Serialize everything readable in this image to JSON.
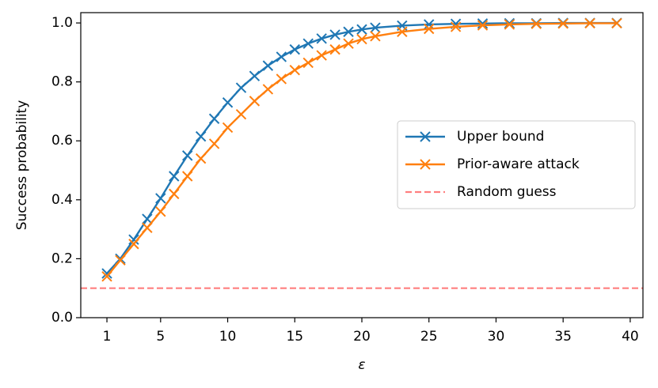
{
  "chart_data": {
    "type": "line",
    "x_label": "ε",
    "y_label": "Success probability",
    "x": [
      1,
      2,
      3,
      4,
      5,
      6,
      7,
      8,
      9,
      10,
      11,
      12,
      13,
      14,
      15,
      16,
      17,
      18,
      19,
      20,
      21,
      23,
      25,
      27,
      29,
      31,
      33,
      35,
      37,
      39
    ],
    "series": [
      {
        "name": "Upper bound",
        "color": "#1f77b4",
        "marker": "x",
        "values": [
          0.15,
          0.2,
          0.265,
          0.335,
          0.405,
          0.48,
          0.55,
          0.615,
          0.675,
          0.73,
          0.78,
          0.82,
          0.855,
          0.885,
          0.91,
          0.93,
          0.947,
          0.96,
          0.97,
          0.978,
          0.984,
          0.991,
          0.995,
          0.997,
          0.998,
          0.999,
          0.999,
          1.0,
          1.0,
          1.0
        ]
      },
      {
        "name": "Prior-aware attack",
        "color": "#ff7f0e",
        "marker": "x",
        "values": [
          0.14,
          0.195,
          0.25,
          0.305,
          0.36,
          0.42,
          0.48,
          0.54,
          0.59,
          0.645,
          0.69,
          0.735,
          0.775,
          0.81,
          0.84,
          0.865,
          0.89,
          0.91,
          0.93,
          0.945,
          0.955,
          0.97,
          0.98,
          0.987,
          0.992,
          0.995,
          0.997,
          0.998,
          0.999,
          0.999
        ]
      }
    ],
    "reference_line": {
      "name": "Random guess",
      "value": 0.1,
      "color": "#ff7f7f",
      "style": "dashed"
    },
    "xlim": [
      -0.95,
      40.95
    ],
    "ylim": [
      0,
      1.035
    ],
    "xticks": [
      1,
      5,
      10,
      15,
      20,
      25,
      30,
      35,
      40
    ],
    "yticks": [
      {
        "value": 0,
        "label": "0.0"
      },
      {
        "value": 0.2,
        "label": "0.2"
      },
      {
        "value": 0.4,
        "label": "0.4"
      },
      {
        "value": 0.6,
        "label": "0.6"
      },
      {
        "value": 0.8,
        "label": "0.8"
      },
      {
        "value": 1,
        "label": "1.0"
      }
    ],
    "legend": "center right"
  }
}
